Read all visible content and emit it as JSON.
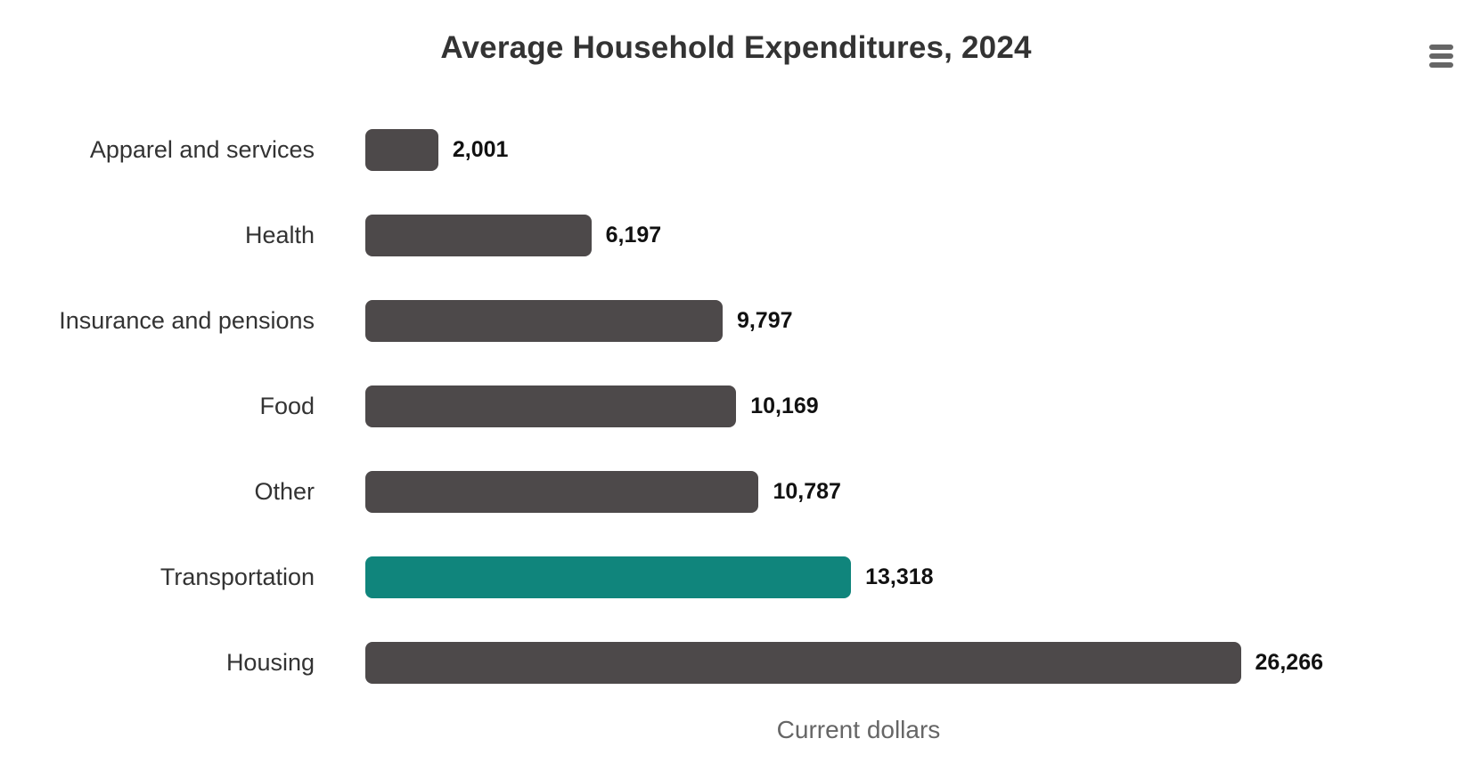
{
  "header": {
    "title": "Average Household Expenditures, 2024",
    "menu_icon": "hamburger-menu-icon"
  },
  "colors": {
    "background": "#FFFFFF",
    "bar_default": "#4D494A",
    "bar_highlight": "#10857C",
    "title_text": "#333333",
    "category_text": "#333333",
    "value_text": "#111111",
    "axis_title_text": "#666666",
    "menu_icon": "#666666"
  },
  "chart_data": {
    "type": "bar",
    "orientation": "horizontal",
    "title": "Average Household Expenditures, 2024",
    "xlabel": "Current dollars",
    "ylabel": "",
    "categories": [
      "Apparel and services",
      "Health",
      "Insurance and pensions",
      "Food",
      "Other",
      "Transportation",
      "Housing"
    ],
    "values": [
      2001,
      6197,
      9797,
      10169,
      10787,
      13318,
      26266
    ],
    "value_labels": [
      "2,001",
      "6,197",
      "9,797",
      "10,169",
      "10,787",
      "13,318",
      "26,266"
    ],
    "highlighted_category": "Transportation",
    "xlim": [
      0,
      26266
    ],
    "grid": false,
    "legend": false,
    "data_labels": true
  }
}
